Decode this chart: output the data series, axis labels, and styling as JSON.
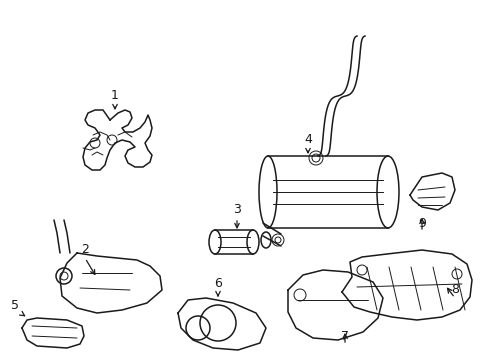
{
  "bg_color": "#ffffff",
  "lc": "#1a1a1a",
  "lw": 1.1,
  "lw_thin": 0.7,
  "label_fontsize": 9,
  "figsize": [
    4.89,
    3.6
  ],
  "dpi": 100,
  "xlim": [
    0,
    489
  ],
  "ylim": [
    0,
    360
  ]
}
